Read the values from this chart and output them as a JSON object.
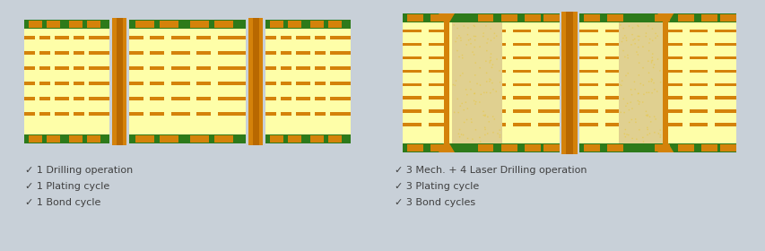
{
  "bg_color": "#c8d0d8",
  "yellow_light": "#fefea8",
  "yellow_mid": "#e8c840",
  "orange_trace": "#d4820a",
  "orange_dark": "#b86800",
  "orange_via": "#c87800",
  "green_pcb": "#2d7a1a",
  "sand": "#e0d090",
  "text_color": "#404040",
  "left_labels": [
    "✓ 1 Drilling operation",
    "✓ 1 Plating cycle",
    "✓ 1 Bond cycle"
  ],
  "right_labels": [
    "✓ 3 Mech. + 4 Laser Drilling operation",
    "✓ 3 Plating cycle",
    "✓ 3 Bond cycles"
  ]
}
